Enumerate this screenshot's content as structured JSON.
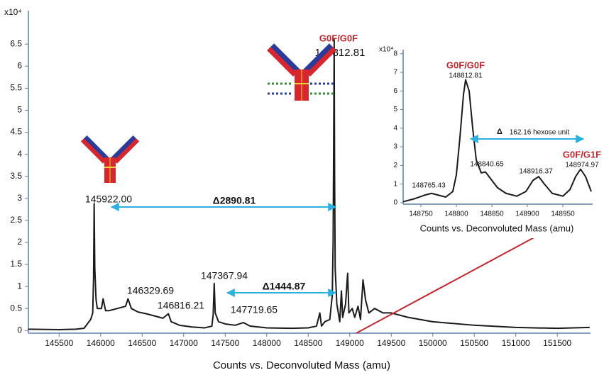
{
  "chart_data": [
    {
      "type": "line",
      "ylabel": "x10⁴",
      "xlabel": "Counts vs. Deconvoluted Mass (amu)",
      "color": "#1a1a1a",
      "xlim": [
        145130,
        151900
      ],
      "ylim": [
        -0.06,
        7.26
      ],
      "xticks": [
        145500,
        146000,
        146500,
        147000,
        147500,
        148000,
        148500,
        149000,
        149500,
        150000,
        150500,
        151000,
        151500
      ],
      "yticks": [
        0,
        0.5,
        1,
        1.5,
        2,
        2.5,
        3,
        3.5,
        4,
        4.5,
        5,
        5.5,
        6,
        6.5
      ],
      "x": [
        145130,
        145500,
        145700,
        145800,
        145880,
        145905,
        145915,
        145922,
        145930,
        145945,
        145960,
        145990,
        146010,
        146030,
        146060,
        146100,
        146200,
        146300,
        146330,
        146370,
        146450,
        146550,
        146650,
        146750,
        146816,
        146850,
        146950,
        147100,
        147250,
        147340,
        147355,
        147368,
        147380,
        147420,
        147500,
        147620,
        147720,
        147800,
        148000,
        148300,
        148500,
        148600,
        148640,
        148660,
        148700,
        148760,
        148790,
        148800,
        148806,
        148812.81,
        148818,
        148825,
        148835,
        148845,
        148880,
        148900,
        148915,
        148950,
        148975,
        148990,
        149030,
        149060,
        149100,
        149130,
        149160,
        149190,
        149230,
        149300,
        149400,
        149500,
        149700,
        150000,
        150500,
        151000,
        151500,
        151890
      ],
      "values": [
        0.03,
        0.02,
        0.03,
        0.05,
        0.25,
        0.4,
        1.2,
        2.88,
        1.4,
        0.7,
        0.5,
        0.5,
        0.5,
        0.72,
        0.45,
        0.45,
        0.5,
        0.55,
        0.72,
        0.5,
        0.42,
        0.38,
        0.33,
        0.28,
        0.38,
        0.2,
        0.12,
        0.08,
        0.06,
        0.1,
        0.35,
        1.07,
        0.4,
        0.2,
        0.15,
        0.12,
        0.18,
        0.1,
        0.06,
        0.05,
        0.06,
        0.1,
        0.4,
        0.1,
        0.2,
        0.25,
        0.8,
        2.0,
        4.0,
        6.6,
        3.5,
        1.4,
        1.0,
        0.6,
        0.2,
        0.9,
        0.3,
        0.6,
        1.3,
        0.4,
        0.5,
        0.3,
        0.55,
        0.25,
        1.15,
        0.7,
        0.4,
        0.5,
        0.4,
        0.4,
        0.3,
        0.2,
        0.12,
        0.07,
        0.05,
        0.07
      ],
      "annotations": [
        "145922.00",
        "146329.69",
        "146816.21",
        "147367.94",
        "147719.65",
        "G0F/G0F",
        "148812.81",
        "Δ2890.81",
        "Δ1444.87"
      ]
    },
    {
      "type": "line",
      "ylabel": "x10⁴",
      "xlabel": "Counts vs. Deconvoluted Mass (amu)",
      "color": "#1a1a1a",
      "xlim": [
        148725,
        148992
      ],
      "ylim": [
        -0.08,
        8.22
      ],
      "xticks": [
        148750,
        148800,
        148850,
        148900,
        148950
      ],
      "yticks": [
        0,
        1,
        2,
        3,
        4,
        5,
        6,
        7,
        8
      ],
      "x": [
        148725,
        148740,
        148755,
        148765,
        148775,
        148785,
        148795,
        148800,
        148805,
        148810,
        148813,
        148818,
        148823,
        148828,
        148835,
        148841,
        148848,
        148858,
        148870,
        148885,
        148898,
        148908,
        148916,
        148924,
        148935,
        148950,
        148960,
        148968,
        148975,
        148982,
        148990
      ],
      "values": [
        0.05,
        0.2,
        0.4,
        0.5,
        0.4,
        0.3,
        0.6,
        1.5,
        3.5,
        5.8,
        6.6,
        6.0,
        4.0,
        2.3,
        1.6,
        1.65,
        1.3,
        0.8,
        0.5,
        0.35,
        0.6,
        1.2,
        1.4,
        1.0,
        0.5,
        0.35,
        0.7,
        1.4,
        1.8,
        1.4,
        0.6
      ],
      "annotations": [
        "G0F/G0F",
        "148812.81",
        "148765.43",
        "148840.65",
        "148916.37",
        "G0F/G1F",
        "148974.97",
        "Δ",
        "162.16  hexose unit"
      ]
    }
  ]
}
